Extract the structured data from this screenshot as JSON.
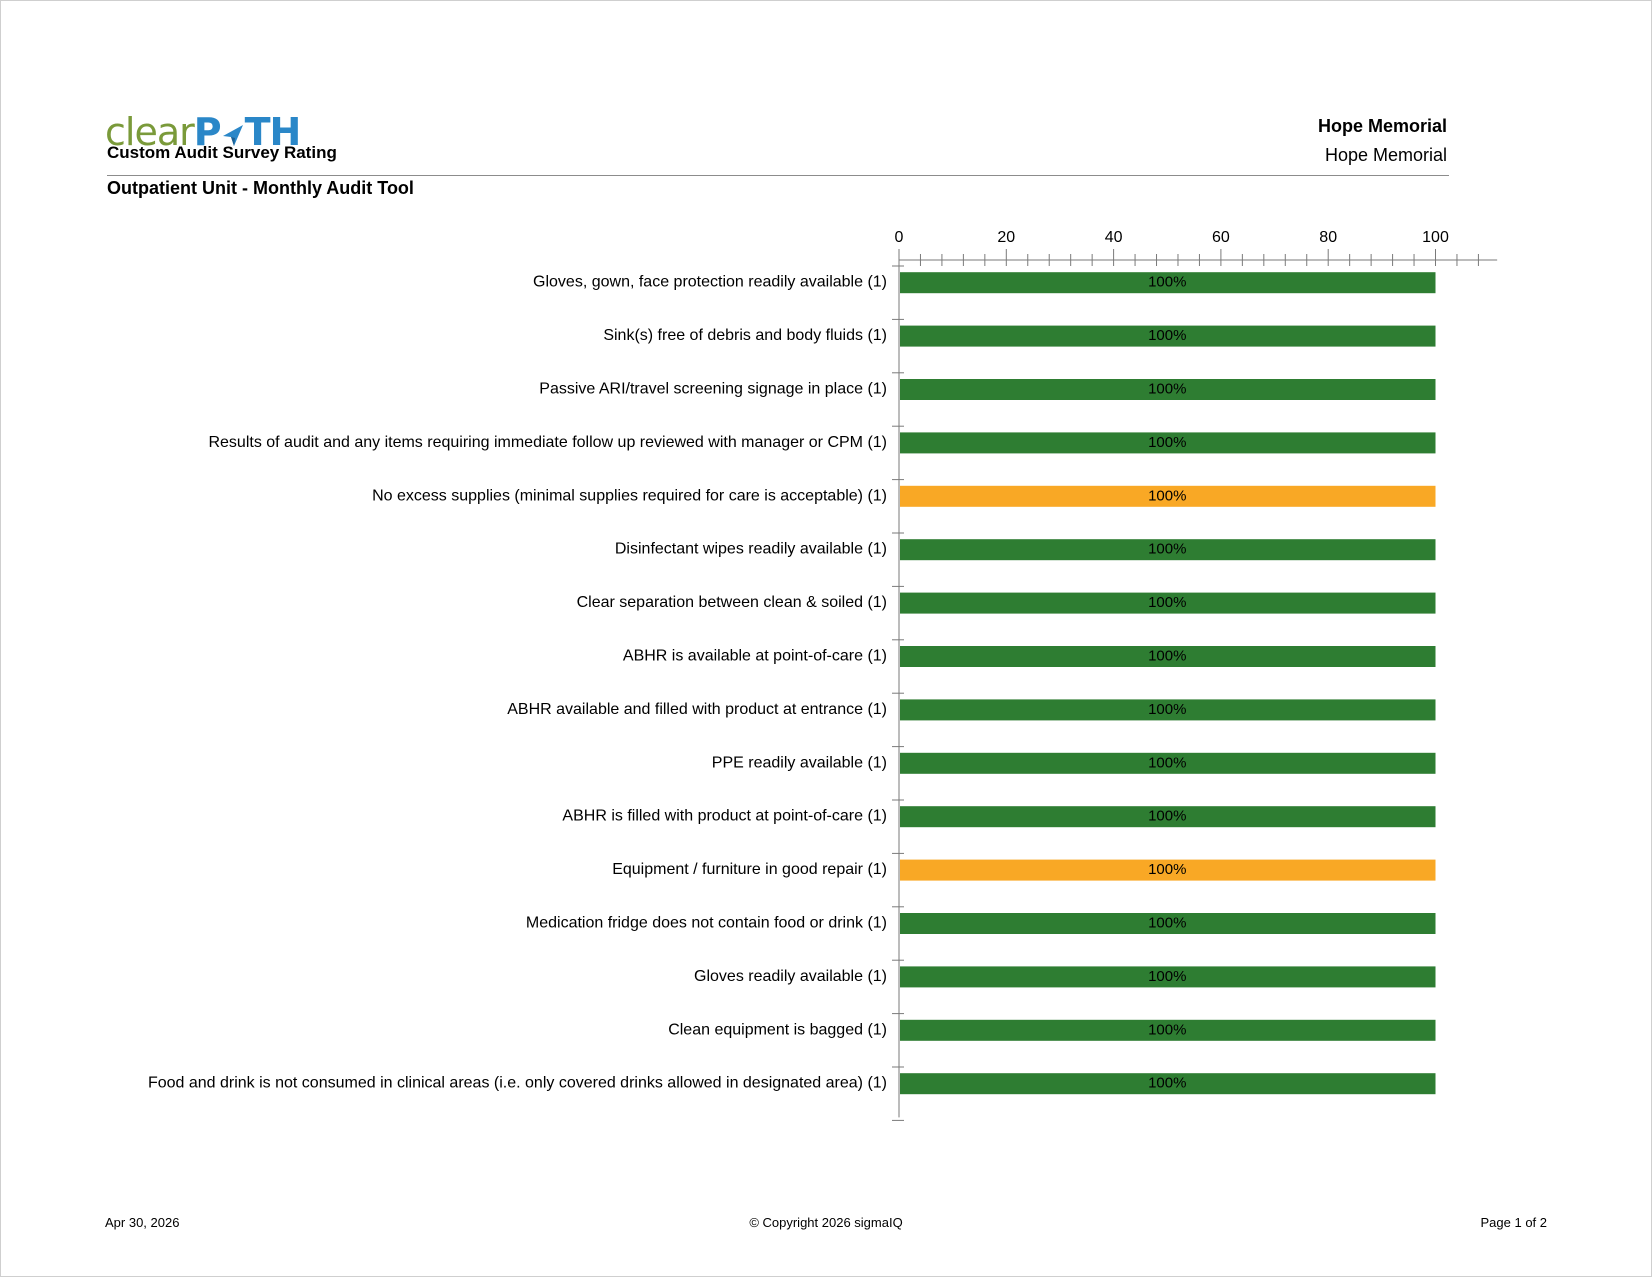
{
  "header": {
    "logo_text_part1": "clear",
    "logo_text_part2": "P",
    "logo_text_part3": "TH",
    "report_type": "Custom Audit Survey Rating",
    "organization_bold": "Hope Memorial",
    "organization": "Hope Memorial",
    "subtitle": "Outpatient Unit - Monthly Audit Tool"
  },
  "colors": {
    "green": "#2e7d32",
    "orange": "#f9a825",
    "logo_green": "#7a9a3a",
    "logo_blue": "#2a87c8"
  },
  "chart_data": {
    "type": "bar",
    "orientation": "horizontal",
    "xlim": [
      0,
      110
    ],
    "xticks": [
      0,
      20,
      40,
      60,
      80,
      100
    ],
    "categories": [
      "Gloves, gown, face protection readily available (1)",
      "Sink(s) free of debris and body fluids (1)",
      "Passive ARI/travel screening signage in place (1)",
      "Results of audit and any items requiring immediate follow up reviewed with manager or CPM (1)",
      "No excess supplies (minimal supplies required for care is acceptable) (1)",
      "Disinfectant wipes readily available (1)",
      "Clear separation between clean & soiled (1)",
      "ABHR is available at point-of-care (1)",
      "ABHR available and filled with product at entrance (1)",
      "PPE readily available (1)",
      "ABHR is filled with product at point-of-care (1)",
      "Equipment / furniture in good repair (1)",
      "Medication fridge does not contain food or drink (1)",
      "Gloves readily available (1)",
      "Clean equipment is bagged (1)",
      "Food and drink is not consumed in clinical areas (i.e. only covered drinks allowed in designated area) (1)"
    ],
    "values": [
      100,
      100,
      100,
      100,
      100,
      100,
      100,
      100,
      100,
      100,
      100,
      100,
      100,
      100,
      100,
      100
    ],
    "value_labels": [
      "100%",
      "100%",
      "100%",
      "100%",
      "100%",
      "100%",
      "100%",
      "100%",
      "100%",
      "100%",
      "100%",
      "100%",
      "100%",
      "100%",
      "100%",
      "100%"
    ],
    "bar_colors": [
      "#2e7d32",
      "#2e7d32",
      "#2e7d32",
      "#2e7d32",
      "#f9a825",
      "#2e7d32",
      "#2e7d32",
      "#2e7d32",
      "#2e7d32",
      "#2e7d32",
      "#2e7d32",
      "#f9a825",
      "#2e7d32",
      "#2e7d32",
      "#2e7d32",
      "#2e7d32"
    ],
    "grid": false,
    "legend": "none"
  },
  "footer": {
    "date": "Apr 30, 2026",
    "copyright": "© Copyright 2026 sigmaIQ",
    "page": "Page 1 of 2"
  }
}
